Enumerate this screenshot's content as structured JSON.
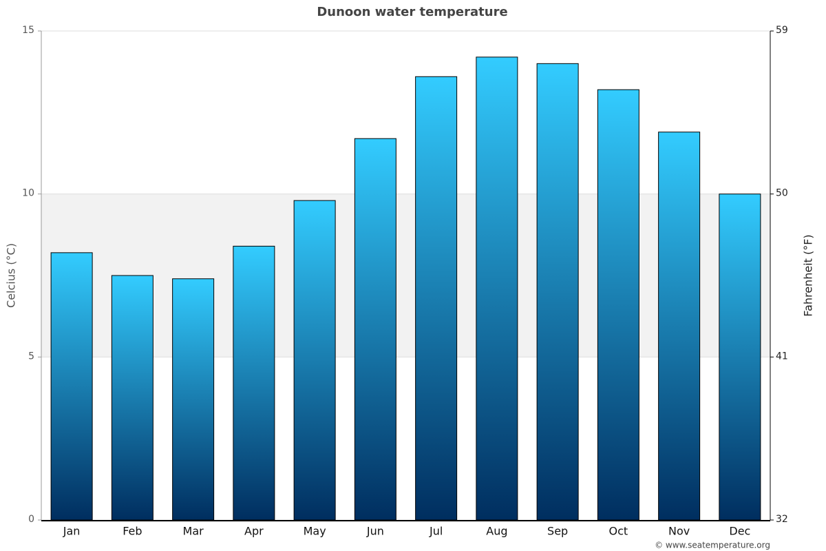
{
  "chart_data": {
    "type": "bar",
    "title": "Dunoon water temperature",
    "y_label": "Celcius (°C)",
    "y2_label": "Fahrenheit (°F)",
    "credit": "© www.seatemperature.org",
    "categories": [
      "Jan",
      "Feb",
      "Mar",
      "Apr",
      "May",
      "Jun",
      "Jul",
      "Aug",
      "Sep",
      "Oct",
      "Nov",
      "Dec"
    ],
    "values": [
      8.2,
      7.5,
      7.4,
      8.4,
      9.8,
      11.7,
      13.6,
      14.2,
      14.0,
      13.2,
      11.9,
      10.0
    ],
    "gradient": [
      "#33ccff",
      "#002e5f"
    ],
    "ylim": [
      0,
      15
    ],
    "yticks": [
      0,
      5,
      10,
      15
    ],
    "y2lim": [
      32,
      59
    ],
    "y2ticks": [
      32,
      41,
      50,
      59
    ],
    "shaded_band": [
      5,
      10
    ],
    "grid": true
  }
}
